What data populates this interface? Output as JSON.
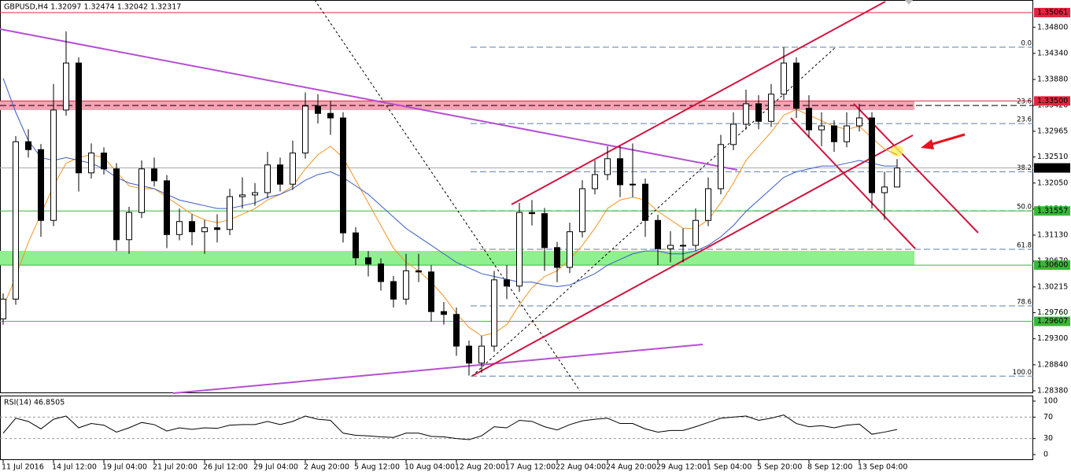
{
  "chart_data": [
    {
      "type": "candlestick",
      "title": "GBPUSD,H4  1.32097 1.32474 1.32042 1.32317",
      "categories": [
        "11 Jul 2016",
        null,
        null,
        null,
        "14 Jul 12:00",
        null,
        null,
        null,
        "19 Jul 04:00",
        null,
        null,
        null,
        "21 Jul 20:00",
        null,
        null,
        null,
        "26 Jul 12:00",
        null,
        null,
        null,
        "29 Jul 04:00",
        null,
        null,
        null,
        "2 Aug 20:00",
        null,
        null,
        null,
        "5 Aug 12:00",
        null,
        null,
        null,
        "10 Aug 04:00",
        null,
        null,
        null,
        "12 Aug 20:00",
        null,
        null,
        null,
        "17 Aug 12:00",
        null,
        null,
        null,
        "22 Aug 04:00",
        null,
        null,
        null,
        "24 Aug 20:00",
        null,
        null,
        null,
        "29 Aug 12:00",
        null,
        null,
        null,
        "1 Sep 04:00",
        null,
        null,
        null,
        "5 Sep 20:00",
        null,
        null,
        null,
        "8 Sep 12:00",
        null,
        null,
        null,
        "13 Sep 04:00",
        null,
        null,
        null
      ],
      "open": [
        1.2965,
        1.3,
        1.3278,
        1.3264,
        1.3139,
        1.3334,
        1.3417,
        1.3223,
        1.3258,
        1.323,
        1.3105,
        1.3153,
        1.323,
        1.3209,
        1.3114,
        1.3137,
        1.3119,
        1.3126,
        1.3123,
        1.3181,
        1.3184,
        1.3188,
        1.3237,
        1.3203,
        1.3258,
        1.3341,
        1.3328,
        1.332,
        1.3117,
        1.3073,
        1.3062,
        1.3031,
        1.3,
        1.305,
        1.3048,
        1.2978,
        1.2973,
        1.2917,
        1.2887,
        1.2917,
        1.3034,
        1.3023,
        1.3153,
        1.3151,
        1.3091,
        1.3056,
        1.3119,
        1.3195,
        1.322,
        1.3248,
        1.3202,
        1.3203,
        1.3139,
        1.3089,
        1.3095,
        1.3095,
        1.3139,
        1.3195,
        1.3273,
        1.3309,
        1.3345,
        1.3314,
        1.3362,
        1.3417,
        1.3337,
        1.3299,
        1.3306,
        1.3278,
        1.3306,
        1.332,
        1.3188,
        1.3198
      ],
      "high": [
        1.301,
        1.3288,
        1.33,
        1.3274,
        1.338,
        1.3473,
        1.3427,
        1.3275,
        1.3268,
        1.324,
        1.3163,
        1.3245,
        1.325,
        1.3219,
        1.316,
        1.315,
        1.314,
        1.315,
        1.3195,
        1.3215,
        1.3205,
        1.326,
        1.325,
        1.328,
        1.3365,
        1.3362,
        1.335,
        1.333,
        1.3127,
        1.3085,
        1.3072,
        1.3041,
        1.308,
        1.308,
        1.306,
        1.2995,
        1.2985,
        1.2927,
        1.2935,
        1.305,
        1.306,
        1.317,
        1.3175,
        1.3161,
        1.3101,
        1.3135,
        1.321,
        1.3245,
        1.327,
        1.327,
        1.3275,
        1.3213,
        1.3149,
        1.312,
        1.3125,
        1.316,
        1.3215,
        1.329,
        1.333,
        1.337,
        1.336,
        1.338,
        1.3445,
        1.3427,
        1.336,
        1.333,
        1.3316,
        1.333,
        1.3345,
        1.333,
        1.3225,
        1.32474
      ],
      "low": [
        1.2955,
        1.299,
        1.325,
        1.311,
        1.3129,
        1.3324,
        1.319,
        1.3213,
        1.322,
        1.3085,
        1.308,
        1.3143,
        1.3199,
        1.309,
        1.3104,
        1.3095,
        1.308,
        1.31,
        1.3113,
        1.316,
        1.3165,
        1.3178,
        1.319,
        1.3193,
        1.3248,
        1.331,
        1.329,
        1.31,
        1.306,
        1.304,
        1.3015,
        1.2985,
        1.299,
        1.303,
        1.296,
        1.2955,
        1.29,
        1.2865,
        1.287,
        1.2907,
        1.3,
        1.3013,
        1.313,
        1.305,
        1.303,
        1.3046,
        1.3109,
        1.3185,
        1.321,
        1.318,
        1.318,
        1.311,
        1.306,
        1.3065,
        1.3065,
        1.3085,
        1.3129,
        1.3185,
        1.3263,
        1.3299,
        1.33,
        1.3304,
        1.3352,
        1.332,
        1.3285,
        1.327,
        1.326,
        1.3268,
        1.3296,
        1.316,
        1.314,
        1.32042
      ],
      "close": [
        1.3,
        1.3278,
        1.3264,
        1.3139,
        1.3334,
        1.3417,
        1.3223,
        1.3258,
        1.323,
        1.3105,
        1.3153,
        1.323,
        1.3209,
        1.3114,
        1.3137,
        1.3119,
        1.3126,
        1.3123,
        1.3181,
        1.3184,
        1.3188,
        1.3237,
        1.3203,
        1.3258,
        1.3341,
        1.3328,
        1.332,
        1.3117,
        1.3073,
        1.3062,
        1.3031,
        1.3,
        1.305,
        1.3048,
        1.2978,
        1.2973,
        1.2917,
        1.2887,
        1.2917,
        1.3034,
        1.3023,
        1.3153,
        1.3151,
        1.3091,
        1.3056,
        1.3119,
        1.3195,
        1.322,
        1.3248,
        1.3202,
        1.3203,
        1.3139,
        1.3089,
        1.3095,
        1.3095,
        1.3139,
        1.3195,
        1.3273,
        1.3309,
        1.3345,
        1.3314,
        1.3362,
        1.3417,
        1.3337,
        1.3299,
        1.3306,
        1.3278,
        1.3306,
        1.332,
        1.3188,
        1.3198,
        1.32317
      ],
      "overlays": [
        {
          "color": "#f39422",
          "values": [
            1.2985,
            1.304,
            1.31,
            1.315,
            1.32,
            1.324,
            1.325,
            1.3255,
            1.325,
            1.3225,
            1.32,
            1.3195,
            1.3195,
            1.318,
            1.3165,
            1.315,
            1.314,
            1.3135,
            1.314,
            1.315,
            1.316,
            1.3175,
            1.3185,
            1.32,
            1.323,
            1.3255,
            1.327,
            1.325,
            1.321,
            1.317,
            1.313,
            1.309,
            1.3065,
            1.305,
            1.303,
            1.3005,
            1.2975,
            1.295,
            1.2935,
            1.294,
            1.2955,
            1.299,
            1.302,
            1.304,
            1.305,
            1.307,
            1.3095,
            1.3125,
            1.316,
            1.3175,
            1.318,
            1.3175,
            1.3155,
            1.314,
            1.3125,
            1.3125,
            1.314,
            1.317,
            1.3205,
            1.3245,
            1.327,
            1.3295,
            1.3325,
            1.3335,
            1.3325,
            1.3315,
            1.3305,
            1.33,
            1.3305,
            1.3285,
            1.3265,
            1.3255
          ]
        },
        {
          "color": "#3b5cc4",
          "values": [
            1.339,
            1.333,
            1.328,
            1.325,
            1.3245,
            1.325,
            1.3245,
            1.324,
            1.323,
            1.3215,
            1.3205,
            1.32,
            1.3195,
            1.3185,
            1.3175,
            1.317,
            1.3165,
            1.316,
            1.316,
            1.3165,
            1.317,
            1.318,
            1.3185,
            1.3195,
            1.321,
            1.322,
            1.3225,
            1.3215,
            1.32,
            1.3185,
            1.3165,
            1.3145,
            1.3125,
            1.311,
            1.3095,
            1.308,
            1.3065,
            1.3055,
            1.3045,
            1.304,
            1.3035,
            1.303,
            1.303,
            1.3025,
            1.3022,
            1.3025,
            1.3035,
            1.3045,
            1.306,
            1.307,
            1.308,
            1.3085,
            1.3085,
            1.308,
            1.308,
            1.3085,
            1.3095,
            1.311,
            1.313,
            1.3155,
            1.3175,
            1.3195,
            1.3215,
            1.3225,
            1.323,
            1.3235,
            1.3235,
            1.324,
            1.3245,
            1.324,
            1.3235,
            1.3235
          ]
        }
      ],
      "ylim": [
        1.28338,
        1.35283
      ],
      "yticks": [
        {
          "value": 1.348,
          "label": "1.34800"
        },
        {
          "value": 1.3434,
          "label": "1.34340"
        },
        {
          "value": 1.3388,
          "label": "1.33880"
        },
        {
          "value": 1.3342,
          "label": "1.33420"
        },
        1.32965,
        {
          "value": 1.3251,
          "label": "1.32510"
        },
        {
          "value": 1.3205,
          "label": "1.32050"
        },
        {
          "value": 1.3159,
          "label": "1.31590"
        },
        {
          "value": 1.3113,
          "label": "1.31130"
        },
        {
          "value": 1.3067,
          "label": "1.30670"
        },
        1.30215,
        {
          "value": 1.2976,
          "label": "1.29760"
        },
        {
          "value": 1.293,
          "label": "1.29300"
        },
        {
          "value": 1.2884,
          "label": "1.28840"
        },
        {
          "value": 1.2838,
          "label": "1.28380"
        }
      ],
      "bull_color": "#ffffff",
      "bear_color": "#000000",
      "zones": [
        {
          "from": 1.33339,
          "to": 1.33505,
          "color": "#f4a3b4"
        },
        {
          "from": 1.30603,
          "to": 1.30852,
          "color": "#8ef08e"
        }
      ],
      "levels": [
        {
          "value": 1.35061,
          "color": "#e3243f"
        },
        {
          "value": 1.335,
          "label": "1.33500",
          "color": "#e3243f"
        },
        {
          "value": 1.31557,
          "color": "#39b739"
        },
        {
          "value": 1.306,
          "label": "1.30600",
          "color": "#39b739"
        },
        {
          "value": 1.29607,
          "color": "#39b739"
        }
      ],
      "last_price": 1.32317,
      "fib": [
        {
          "value": 1.3445,
          "label": "0.0"
        },
        {
          "value": 1.331,
          "label": "23.6"
        },
        {
          "value": 1.3225,
          "label": "38.2"
        },
        {
          "value": 1.3156,
          "label": "50.0"
        },
        {
          "value": 1.3088,
          "label": "61.8"
        },
        {
          "value": 1.2988,
          "label": "78.6"
        },
        {
          "value": 1.2864,
          "label": "100.0"
        }
      ],
      "fib_color": "#5d7fa8",
      "black_fib": {
        "value": 1.3342,
        "label": "23.6"
      }
    },
    {
      "type": "line",
      "title": "RSI(14) 46.8505",
      "color": "#000000",
      "values": [
        40,
        68,
        62,
        48,
        66,
        72,
        50,
        58,
        55,
        42,
        50,
        60,
        56,
        44,
        50,
        47,
        50,
        49,
        55,
        56,
        56,
        62,
        56,
        62,
        72,
        66,
        64,
        40,
        36,
        35,
        33,
        32,
        40,
        40,
        34,
        33,
        30,
        28,
        35,
        52,
        50,
        64,
        62,
        52,
        46,
        56,
        63,
        66,
        68,
        58,
        58,
        48,
        42,
        45,
        45,
        52,
        60,
        68,
        70,
        72,
        64,
        68,
        74,
        58,
        52,
        54,
        50,
        55,
        57,
        38,
        42,
        46.8505
      ],
      "ylim": [
        -10.3,
        110.3
      ],
      "yticks": [
        100,
        70,
        30,
        0
      ],
      "dashed_levels": [
        70,
        30
      ]
    }
  ]
}
